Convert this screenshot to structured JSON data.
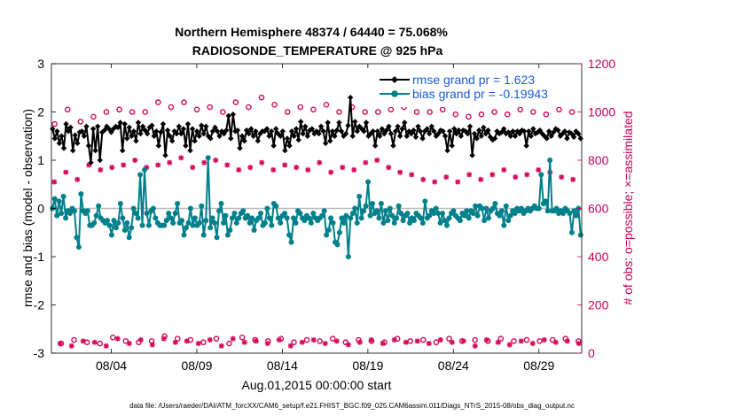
{
  "chart_data": {
    "type": "line",
    "title": "Northern Hemisphere 48374 / 64440 = 75.068%",
    "subtitle": "RADIOSONDE_TEMPERATURE @ 925 hPa",
    "xlabel": "Aug.01,2015 00:00:00 start",
    "ylabel_left": "rmse and bias (model - observation)",
    "ylabel_right": "# of obs: o=possible; ×=assimilated",
    "footer": "data file: /Users/raeder/DAI/ATM_forcXX/CAM6_setup/f.e21.FHIST_BGC.f09_025.CAM6assim.011/Diags_NTrS_2015-08/obs_diag_output.nc",
    "x_ticks": [
      {
        "day": 3.5,
        "label": "08/04"
      },
      {
        "day": 8.5,
        "label": "08/09"
      },
      {
        "day": 13.5,
        "label": "08/14"
      },
      {
        "day": 18.5,
        "label": "08/19"
      },
      {
        "day": 23.5,
        "label": "08/24"
      },
      {
        "day": 28.5,
        "label": "08/29"
      }
    ],
    "xlim": [
      0,
      31
    ],
    "ylim_left": [
      -3,
      3
    ],
    "ylim_right": [
      0,
      1200
    ],
    "yticks_left": [
      "-3",
      "-2",
      "-1",
      "0",
      "1",
      "2",
      "3"
    ],
    "yticks_right": [
      "0",
      "200",
      "400",
      "600",
      "800",
      "1000",
      "1200"
    ],
    "left_axis_color": "#000000",
    "right_axis_color": "#c8005a",
    "grid": false,
    "legend_position": "top-right",
    "series": [
      {
        "name": "rmse grand pr = 1.623",
        "axis": "left",
        "color": "#000000",
        "marker": "diamond",
        "values": [
          1.65,
          1.45,
          1.6,
          1.35,
          1.5,
          1.25,
          1.75,
          1.6,
          1.68,
          1.2,
          1.52,
          1.35,
          1.58,
          1.6,
          1.5,
          1.7,
          1.3,
          0.95,
          1.65,
          1.2,
          1.7,
          1.0,
          1.58,
          1.62,
          1.7,
          1.65,
          1.58,
          1.65,
          1.7,
          1.68,
          1.78,
          1.2,
          1.75,
          1.45,
          1.68,
          1.5,
          1.6,
          1.4,
          1.78,
          1.55,
          1.7,
          1.62,
          1.55,
          1.68,
          1.72,
          1.5,
          1.6,
          1.3,
          1.58,
          1.75,
          1.1,
          1.62,
          1.5,
          1.4,
          1.6,
          1.55,
          1.7,
          1.55,
          1.65,
          1.3,
          1.75,
          1.2,
          1.65,
          1.4,
          1.6,
          1.5,
          1.72,
          1.55,
          1.7,
          1.5,
          1.45,
          1.6,
          1.68,
          1.6,
          1.5,
          1.6,
          1.55,
          1.62,
          1.92,
          1.45,
          1.95,
          1.6,
          1.62,
          1.25,
          1.5,
          1.4,
          1.62,
          1.55,
          1.65,
          1.5,
          1.6,
          1.4,
          1.55,
          1.6,
          1.6,
          1.65,
          1.5,
          1.6,
          1.3,
          1.65,
          1.55,
          1.5,
          1.6,
          1.2,
          1.45,
          1.3,
          1.6,
          1.5,
          1.65,
          1.42,
          1.8,
          1.55,
          1.7,
          1.5,
          1.62,
          1.65,
          1.55,
          1.6,
          1.55,
          1.7,
          1.6,
          1.35,
          1.78,
          1.4,
          1.6,
          1.5,
          1.62,
          1.78,
          1.6,
          1.5,
          1.55,
          1.72,
          2.3,
          1.5,
          1.8,
          1.6,
          1.7,
          1.65,
          1.6,
          1.78,
          1.5,
          1.55,
          1.6,
          1.3,
          1.6,
          1.5,
          1.65,
          1.55,
          1.62,
          1.7,
          1.55,
          1.3,
          1.6,
          1.7,
          1.5,
          1.65,
          1.78,
          1.5,
          1.6,
          1.55,
          1.62,
          1.48,
          1.7,
          1.6,
          1.45,
          1.6,
          1.65,
          1.55,
          1.7,
          1.6,
          1.5,
          1.55,
          1.62,
          1.6,
          1.5,
          1.2,
          1.6,
          1.3,
          1.65,
          1.55,
          1.62,
          1.5,
          1.62,
          1.6,
          1.55,
          1.7,
          1.1,
          1.55,
          1.45,
          1.62,
          1.5,
          1.68,
          1.55,
          1.62,
          1.48,
          1.42,
          1.45,
          1.6,
          1.55,
          1.58,
          1.65,
          1.55,
          1.58,
          1.5,
          1.6,
          1.5,
          1.6,
          1.55,
          1.62,
          1.6,
          1.3,
          1.6,
          1.5,
          1.65,
          1.55,
          1.58,
          1.62,
          1.55,
          1.5,
          1.45,
          1.6,
          1.5,
          1.58,
          1.65,
          1.62,
          1.5,
          1.55,
          1.6,
          1.45,
          1.58,
          1.55,
          1.48,
          1.6,
          1.55,
          1.45
        ]
      },
      {
        "name": "bias grand pr = -0.19943",
        "axis": "left",
        "color": "#00808a",
        "marker": "circle",
        "values": [
          0.0,
          0.2,
          -0.15,
          0.15,
          -0.1,
          0.25,
          -0.2,
          -0.05,
          -0.1,
          0.0,
          -0.05,
          -0.6,
          -0.8,
          0.3,
          -0.05,
          -0.1,
          -0.05,
          -0.35,
          -0.35,
          -0.3,
          -0.15,
          0.05,
          -0.2,
          -0.25,
          -0.3,
          -0.25,
          -0.35,
          -0.55,
          -0.25,
          -0.4,
          -0.3,
          0.1,
          -0.2,
          -0.45,
          -0.3,
          -0.6,
          -0.4,
          0.0,
          -0.1,
          -0.2,
          0.7,
          -0.35,
          0.8,
          -0.1,
          -0.35,
          -0.05,
          0.0,
          -0.2,
          -0.3,
          -0.35,
          -0.35,
          -0.35,
          -0.25,
          -0.1,
          -0.2,
          -0.3,
          -0.1,
          0.1,
          -0.3,
          -0.25,
          -0.55,
          -0.4,
          -0.3,
          0.0,
          -0.35,
          -0.2,
          -0.35,
          -0.3,
          0.05,
          -0.55,
          -0.25,
          1.05,
          -0.4,
          -0.2,
          -0.3,
          -0.6,
          -0.05,
          0.1,
          -0.3,
          -0.15,
          -0.55,
          -0.45,
          -0.2,
          -0.1,
          -0.3,
          -0.2,
          -0.1,
          -0.05,
          -0.2,
          -0.15,
          -0.3,
          -0.2,
          -0.45,
          -0.25,
          -0.2,
          -0.1,
          -0.35,
          -0.3,
          0.0,
          -0.2,
          -0.35,
          0.1,
          0.05,
          -0.2,
          -0.3,
          -0.15,
          -0.1,
          -0.2,
          -0.55,
          -0.7,
          -0.2,
          -0.3,
          -0.05,
          -0.1,
          -0.2,
          -0.25,
          -0.15,
          -0.2,
          -0.3,
          -0.1,
          -0.2,
          -0.25,
          -0.2,
          -0.15,
          -0.05,
          -0.55,
          -0.45,
          -0.2,
          -0.3,
          -0.7,
          -0.75,
          -0.5,
          -0.2,
          -0.3,
          -0.15,
          -1.0,
          -0.2,
          -0.1,
          0.0,
          -0.3,
          0.25,
          -0.2,
          -0.05,
          0.05,
          0.55,
          -0.15,
          0.1,
          -0.1,
          -0.05,
          -0.2,
          0.1,
          -0.3,
          -0.05,
          -0.25,
          0.0,
          -0.15,
          -0.3,
          -0.2,
          0.05,
          -0.1,
          -0.25,
          -0.15,
          -0.1,
          -0.3,
          -0.2,
          -0.25,
          -0.1,
          -0.15,
          -0.2,
          -0.3,
          0.15,
          -0.2,
          -0.15,
          -0.05,
          -0.1,
          0.0,
          -0.1,
          -0.3,
          -0.1,
          -0.25,
          -0.35,
          -0.2,
          -0.1,
          -0.05,
          -0.15,
          -0.2,
          -0.25,
          -0.1,
          -0.15,
          -0.05,
          -0.2,
          -0.05,
          -0.1,
          0.05,
          -0.15,
          0.05,
          0.0,
          -0.25,
          0.0,
          -0.2,
          -0.05,
          0.0,
          0.1,
          -0.1,
          -0.15,
          -0.05,
          -0.35,
          0.05,
          -0.25,
          -0.15,
          -0.05,
          -0.1,
          0.0,
          -0.05,
          0.0,
          -0.1,
          -0.05,
          0.0,
          -0.05,
          0.0,
          0.05,
          0.0,
          0.0,
          0.7,
          0.1,
          0.15,
          -0.05,
          1.0,
          -0.05,
          -0.05,
          0.0,
          -0.1,
          -0.05,
          -0.1,
          0.0,
          -0.05,
          -0.1,
          -0.5,
          -0.05,
          -0.15,
          0.0,
          -0.55
        ]
      },
      {
        "name": "possible",
        "axis": "right",
        "color": "#d40a5a",
        "marker": "o",
        "values": [
          950,
          40,
          1010,
          55,
          960,
          45,
          980,
          40,
          1000,
          65,
          1010,
          50,
          1000,
          45,
          1000,
          50,
          1040,
          70,
          1020,
          60,
          1040,
          55,
          1010,
          45,
          1020,
          60,
          1000,
          40,
          1040,
          65,
          1020,
          55,
          1060,
          50,
          1030,
          60,
          1000,
          45,
          1020,
          55,
          1010,
          50,
          1030,
          60,
          1000,
          45,
          1020,
          55,
          1000,
          50,
          1000,
          45,
          1010,
          60,
          1020,
          50,
          1000,
          55,
          1000,
          45,
          1010,
          60,
          990,
          50,
          980,
          55,
          990,
          50,
          1000,
          60,
          990,
          50,
          1010,
          55,
          1000,
          50,
          990,
          55,
          1010,
          60,
          1000,
          50
        ]
      },
      {
        "name": "assimilated",
        "axis": "right",
        "color": "#d40a5a",
        "marker": "x",
        "values": [
          710,
          40,
          750,
          30,
          720,
          50,
          780,
          45,
          760,
          30,
          770,
          60,
          780,
          40,
          800,
          55,
          770,
          35,
          780,
          60,
          790,
          45,
          810,
          50,
          770,
          40,
          790,
          55,
          800,
          30,
          780,
          60,
          760,
          45,
          770,
          50,
          790,
          40,
          760,
          55,
          780,
          30,
          770,
          45,
          760,
          55,
          790,
          40,
          750,
          50,
          770,
          35,
          760,
          45,
          790,
          55,
          800,
          40,
          770,
          55,
          750,
          45,
          740,
          50,
          720,
          40,
          710,
          55,
          730,
          45,
          710,
          50,
          740,
          30,
          720,
          55,
          740,
          45,
          760,
          35,
          730,
          50,
          740,
          40,
          760,
          55,
          750,
          45,
          730,
          50,
          720,
          40
        ]
      }
    ]
  }
}
